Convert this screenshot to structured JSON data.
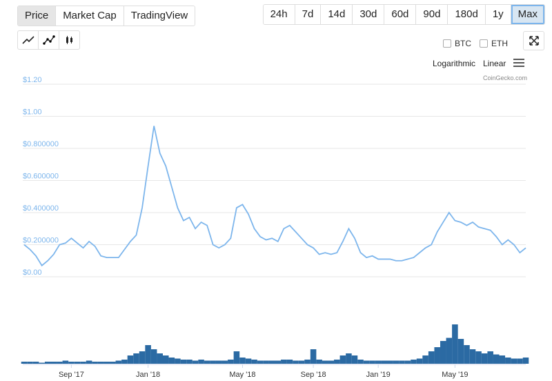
{
  "tabs": [
    "Price",
    "Market Cap",
    "TradingView"
  ],
  "ranges": [
    "24h",
    "7d",
    "14d",
    "30d",
    "60d",
    "90d",
    "180d",
    "1y",
    "Max"
  ],
  "compare": [
    "BTC",
    "ETH"
  ],
  "scales": [
    "Logarithmic",
    "Linear"
  ],
  "credit": "CoinGecko.com",
  "chart_data": {
    "type": "line",
    "color": "#7cb5ec",
    "values": [
      0.2,
      0.17,
      0.13,
      0.07,
      0.1,
      0.14,
      0.2,
      0.21,
      0.24,
      0.21,
      0.18,
      0.22,
      0.19,
      0.13,
      0.12,
      0.12,
      0.12,
      0.17,
      0.22,
      0.26,
      0.43,
      0.69,
      0.94,
      0.77,
      0.69,
      0.56,
      0.43,
      0.35,
      0.37,
      0.3,
      0.34,
      0.32,
      0.2,
      0.18,
      0.2,
      0.24,
      0.43,
      0.45,
      0.39,
      0.3,
      0.25,
      0.23,
      0.24,
      0.22,
      0.3,
      0.32,
      0.28,
      0.24,
      0.2,
      0.18,
      0.14,
      0.15,
      0.14,
      0.15,
      0.22,
      0.3,
      0.24,
      0.15,
      0.12,
      0.13,
      0.11,
      0.11,
      0.11,
      0.1,
      0.1,
      0.11,
      0.12,
      0.15,
      0.18,
      0.2,
      0.28,
      0.34,
      0.4,
      0.35,
      0.34,
      0.32,
      0.34,
      0.31,
      0.3,
      0.29,
      0.25,
      0.2,
      0.23,
      0.2,
      0.15,
      0.18
    ],
    "volume": [
      2,
      2,
      2,
      1,
      2,
      2,
      2,
      3,
      2,
      2,
      2,
      3,
      2,
      2,
      2,
      2,
      3,
      4,
      8,
      10,
      12,
      18,
      14,
      10,
      8,
      6,
      5,
      4,
      4,
      3,
      4,
      3,
      3,
      3,
      3,
      4,
      12,
      6,
      5,
      4,
      3,
      3,
      3,
      3,
      4,
      4,
      3,
      3,
      4,
      14,
      4,
      3,
      3,
      4,
      8,
      10,
      8,
      4,
      3,
      3,
      3,
      3,
      3,
      3,
      3,
      3,
      4,
      5,
      8,
      12,
      16,
      22,
      25,
      38,
      24,
      18,
      14,
      12,
      10,
      12,
      9,
      8,
      6,
      5,
      5,
      6
    ],
    "volume_color": "#2b6aa3",
    "xlim": [
      0,
      85
    ],
    "xticks": [
      {
        "value": 8,
        "label": "Sep '17"
      },
      {
        "value": 21,
        "label": "Jan '18"
      },
      {
        "value": 37,
        "label": "May '18"
      },
      {
        "value": 49,
        "label": "Sep '18"
      },
      {
        "value": 60,
        "label": "Jan '19"
      },
      {
        "value": 73,
        "label": "May '19"
      }
    ],
    "ylim": [
      0,
      1.2
    ],
    "yticks": [
      {
        "value": 0,
        "label": "$0.00"
      },
      {
        "value": 0.2,
        "label": "$0.200000"
      },
      {
        "value": 0.4,
        "label": "$0.400000"
      },
      {
        "value": 0.6,
        "label": "$0.600000"
      },
      {
        "value": 0.8,
        "label": "$0.800000"
      },
      {
        "value": 1.0,
        "label": "$1.00"
      },
      {
        "value": 1.2,
        "label": "$1.20"
      }
    ],
    "y2lim": [
      0,
      40
    ],
    "grid": true
  }
}
